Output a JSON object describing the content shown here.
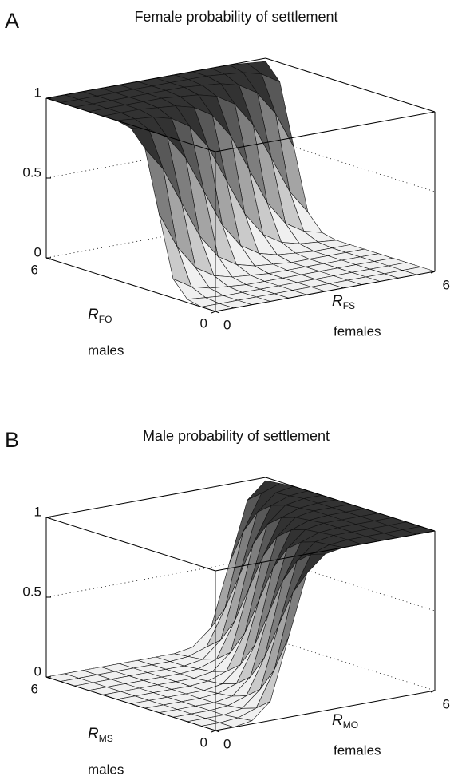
{
  "chart_data": [
    {
      "type": "surface",
      "panel": "A",
      "title": "Female probability of settlement",
      "x_label": "males",
      "x_symbol": "R",
      "x_symbol_sub": "FO",
      "y_label": "females",
      "y_symbol": "R",
      "y_symbol_sub": "FS",
      "x": [
        0,
        0.5,
        1,
        1.5,
        2,
        2.5,
        3,
        3.5,
        4,
        4.5,
        5,
        5.5,
        6
      ],
      "y": [
        0,
        0.5,
        1,
        1.5,
        2,
        2.5,
        3,
        3.5,
        4,
        4.5,
        5,
        5.5,
        6
      ],
      "z": [
        [
          0,
          0,
          0,
          0,
          0,
          0,
          0,
          0,
          0,
          0,
          0,
          0,
          0
        ],
        [
          0,
          0,
          0,
          0,
          0,
          0,
          0,
          0,
          0,
          0,
          0,
          0,
          0
        ],
        [
          0.02,
          0.01,
          0,
          0,
          0,
          0,
          0,
          0,
          0,
          0,
          0,
          0,
          0
        ],
        [
          0.12,
          0.05,
          0.02,
          0.01,
          0,
          0,
          0,
          0,
          0,
          0,
          0,
          0,
          0
        ],
        [
          0.5,
          0.27,
          0.12,
          0.05,
          0.02,
          0.01,
          0,
          0,
          0,
          0,
          0,
          0,
          0
        ],
        [
          0.88,
          0.73,
          0.5,
          0.27,
          0.12,
          0.05,
          0.02,
          0.01,
          0,
          0,
          0,
          0,
          0
        ],
        [
          0.98,
          0.95,
          0.88,
          0.73,
          0.5,
          0.27,
          0.12,
          0.05,
          0.02,
          0.01,
          0,
          0,
          0
        ],
        [
          1,
          0.99,
          0.98,
          0.95,
          0.88,
          0.73,
          0.5,
          0.27,
          0.12,
          0.05,
          0.02,
          0.01,
          0
        ],
        [
          1,
          1,
          1,
          0.99,
          0.98,
          0.95,
          0.88,
          0.73,
          0.5,
          0.27,
          0.12,
          0.05,
          0.02
        ],
        [
          1,
          1,
          1,
          1,
          1,
          0.99,
          0.98,
          0.95,
          0.88,
          0.73,
          0.5,
          0.27,
          0.12
        ],
        [
          1,
          1,
          1,
          1,
          1,
          1,
          1,
          0.99,
          0.98,
          0.95,
          0.88,
          0.73,
          0.5
        ],
        [
          1,
          1,
          1,
          1,
          1,
          1,
          1,
          1,
          1,
          0.99,
          0.98,
          0.95,
          0.88
        ],
        [
          1,
          1,
          1,
          1,
          1,
          1,
          1,
          1,
          1,
          1,
          1,
          0.99,
          0.98
        ]
      ],
      "xlim": [
        0,
        6
      ],
      "ylim": [
        0,
        6
      ],
      "zlim": [
        0,
        1
      ],
      "xticks": [
        0,
        6
      ],
      "yticks": [
        0,
        6
      ],
      "zticks": [
        0,
        0.5,
        1
      ],
      "colormap": "gray",
      "grid": true
    },
    {
      "type": "surface",
      "panel": "B",
      "title": "Male probability of settlement",
      "x_label": "males",
      "x_symbol": "R",
      "x_symbol_sub": "MS",
      "y_label": "females",
      "y_symbol": "R",
      "y_symbol_sub": "MO",
      "x": [
        0,
        0.5,
        1,
        1.5,
        2,
        2.5,
        3,
        3.5,
        4,
        4.5,
        5,
        5.5,
        6
      ],
      "y": [
        0,
        0.5,
        1,
        1.5,
        2,
        2.5,
        3,
        3.5,
        4,
        4.5,
        5,
        5.5,
        6
      ],
      "z": [
        [
          0,
          0,
          0.02,
          0.12,
          0.5,
          0.88,
          0.98,
          1,
          1,
          1,
          1,
          1,
          1
        ],
        [
          0,
          0,
          0.01,
          0.05,
          0.27,
          0.73,
          0.95,
          0.99,
          1,
          1,
          1,
          1,
          1
        ],
        [
          0,
          0,
          0,
          0.02,
          0.12,
          0.5,
          0.88,
          0.98,
          1,
          1,
          1,
          1,
          1
        ],
        [
          0,
          0,
          0,
          0.01,
          0.05,
          0.27,
          0.73,
          0.95,
          0.99,
          1,
          1,
          1,
          1
        ],
        [
          0,
          0,
          0,
          0,
          0.02,
          0.12,
          0.5,
          0.88,
          0.98,
          1,
          1,
          1,
          1
        ],
        [
          0,
          0,
          0,
          0,
          0.01,
          0.05,
          0.27,
          0.73,
          0.95,
          0.99,
          1,
          1,
          1
        ],
        [
          0,
          0,
          0,
          0,
          0,
          0.02,
          0.12,
          0.5,
          0.88,
          0.98,
          1,
          1,
          1
        ],
        [
          0,
          0,
          0,
          0,
          0,
          0.01,
          0.05,
          0.27,
          0.73,
          0.95,
          0.99,
          1,
          1
        ],
        [
          0,
          0,
          0,
          0,
          0,
          0,
          0.02,
          0.12,
          0.5,
          0.88,
          0.98,
          1,
          1
        ],
        [
          0,
          0,
          0,
          0,
          0,
          0,
          0.01,
          0.05,
          0.27,
          0.73,
          0.95,
          0.99,
          1
        ],
        [
          0,
          0,
          0,
          0,
          0,
          0,
          0,
          0.02,
          0.12,
          0.5,
          0.88,
          0.98,
          1
        ],
        [
          0,
          0,
          0,
          0,
          0,
          0,
          0,
          0.01,
          0.05,
          0.27,
          0.73,
          0.95,
          0.99
        ],
        [
          0,
          0,
          0,
          0,
          0,
          0,
          0,
          0,
          0.02,
          0.12,
          0.5,
          0.88,
          0.98
        ]
      ],
      "xlim": [
        0,
        6
      ],
      "ylim": [
        0,
        6
      ],
      "zlim": [
        0,
        1
      ],
      "xticks": [
        0,
        6
      ],
      "yticks": [
        0,
        6
      ],
      "zticks": [
        0,
        0.5,
        1
      ],
      "colormap": "gray",
      "grid": true
    }
  ]
}
